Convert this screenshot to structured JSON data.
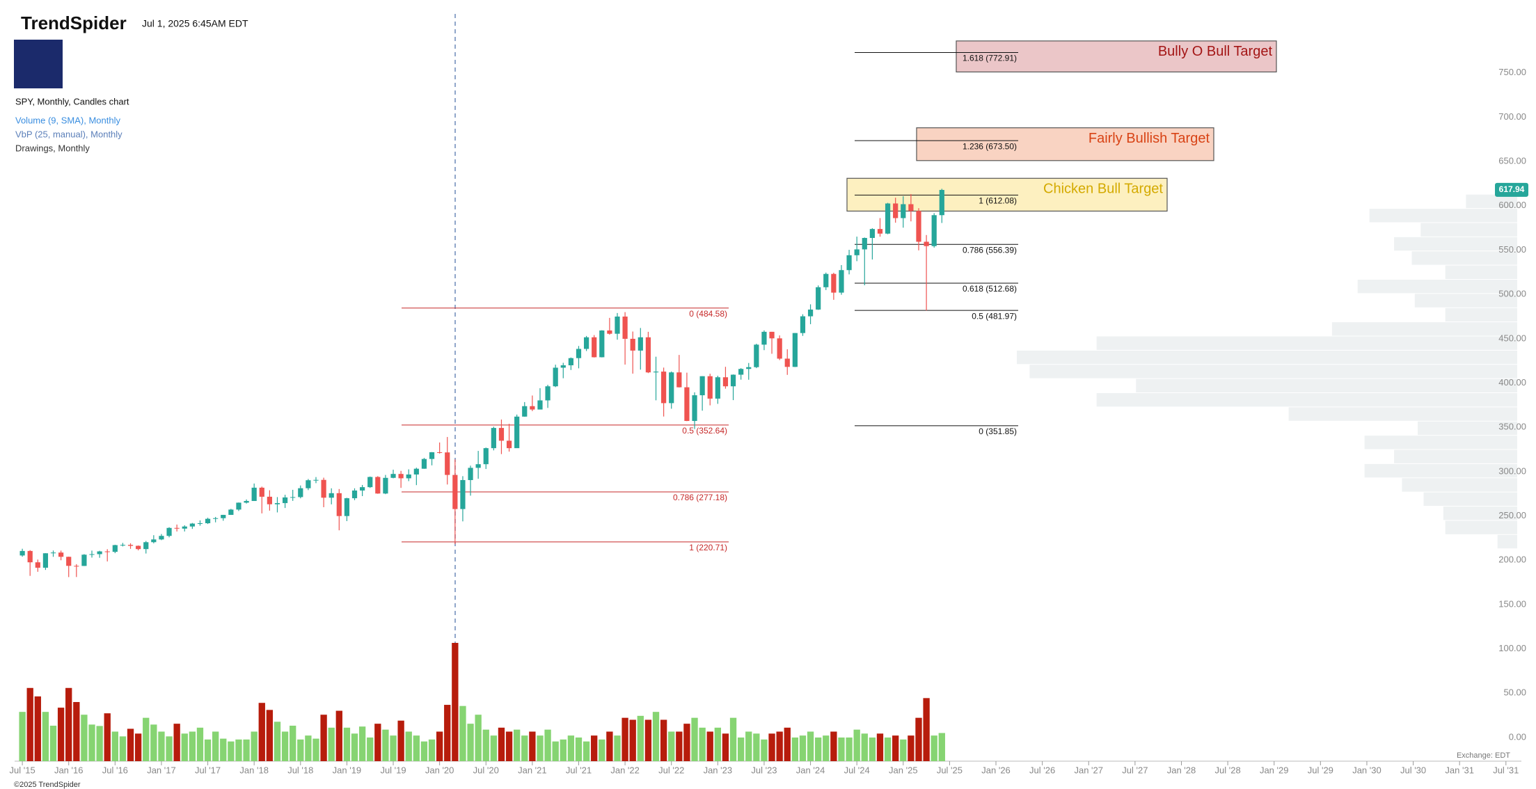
{
  "header": {
    "brand": "TrendSpider",
    "timestamp": "Jul 1, 2025 6:45AM EDT",
    "legend": [
      "SPY, Monthly, Candles chart",
      "Volume (9, SMA), Monthly",
      "VbP (25, manual), Monthly",
      "Drawings, Monthly"
    ]
  },
  "chart_data": {
    "type": "candlestick",
    "x": [
      "2015-07",
      "2015-08",
      "2015-09",
      "2015-10",
      "2015-11",
      "2015-12",
      "2016-01",
      "2016-02",
      "2016-03",
      "2016-04",
      "2016-05",
      "2016-06",
      "2016-07",
      "2016-08",
      "2016-09",
      "2016-10",
      "2016-11",
      "2016-12",
      "2017-01",
      "2017-02",
      "2017-03",
      "2017-04",
      "2017-05",
      "2017-06",
      "2017-07",
      "2017-08",
      "2017-09",
      "2017-10",
      "2017-11",
      "2017-12",
      "2018-01",
      "2018-02",
      "2018-03",
      "2018-04",
      "2018-05",
      "2018-06",
      "2018-07",
      "2018-08",
      "2018-09",
      "2018-10",
      "2018-11",
      "2018-12",
      "2019-01",
      "2019-02",
      "2019-03",
      "2019-04",
      "2019-05",
      "2019-06",
      "2019-07",
      "2019-08",
      "2019-09",
      "2019-10",
      "2019-11",
      "2019-12",
      "2020-01",
      "2020-02",
      "2020-03",
      "2020-04",
      "2020-05",
      "2020-06",
      "2020-07",
      "2020-08",
      "2020-09",
      "2020-10",
      "2020-11",
      "2020-12",
      "2021-01",
      "2021-02",
      "2021-03",
      "2021-04",
      "2021-05",
      "2021-06",
      "2021-07",
      "2021-08",
      "2021-09",
      "2021-10",
      "2021-11",
      "2021-12",
      "2022-01",
      "2022-02",
      "2022-03",
      "2022-04",
      "2022-05",
      "2022-06",
      "2022-07",
      "2022-08",
      "2022-09",
      "2022-10",
      "2022-11",
      "2022-12",
      "2023-01",
      "2023-02",
      "2023-03",
      "2023-04",
      "2023-05",
      "2023-06",
      "2023-07",
      "2023-08",
      "2023-09",
      "2023-10",
      "2023-11",
      "2023-12",
      "2024-01",
      "2024-02",
      "2024-03",
      "2024-04",
      "2024-05",
      "2024-06",
      "2024-07",
      "2024-08",
      "2024-09",
      "2024-10",
      "2024-11",
      "2024-12",
      "2025-01",
      "2025-02",
      "2025-03",
      "2025-04",
      "2025-05",
      "2025-06"
    ],
    "ohlc": [
      [
        205.4,
        213.0,
        204.0,
        210.5
      ],
      [
        210.5,
        211.4,
        182.4,
        197.7
      ],
      [
        197.7,
        200.8,
        187.0,
        191.6
      ],
      [
        191.6,
        208.0,
        189.1,
        207.9
      ],
      [
        207.9,
        211.0,
        203.9,
        208.7
      ],
      [
        208.7,
        210.9,
        200.0,
        203.9
      ],
      [
        203.9,
        204.1,
        181.0,
        193.7
      ],
      [
        193.7,
        195.6,
        181.1,
        193.6
      ],
      [
        193.6,
        206.9,
        193.5,
        206.3
      ],
      [
        206.3,
        210.9,
        203.0,
        206.9
      ],
      [
        206.9,
        210.7,
        202.8,
        210.0
      ],
      [
        210.0,
        212.5,
        198.7,
        209.5
      ],
      [
        209.5,
        217.5,
        208.0,
        217.1
      ],
      [
        217.1,
        219.6,
        215.6,
        217.4
      ],
      [
        217.4,
        219.2,
        212.9,
        216.3
      ],
      [
        216.3,
        216.7,
        211.2,
        212.6
      ],
      [
        212.6,
        221.8,
        207.6,
        220.4
      ],
      [
        220.4,
        228.3,
        219.1,
        223.5
      ],
      [
        223.5,
        229.6,
        222.7,
        227.5
      ],
      [
        227.5,
        237.3,
        225.9,
        236.5
      ],
      [
        236.5,
        240.3,
        232.5,
        235.7
      ],
      [
        235.7,
        239.5,
        232.5,
        238.1
      ],
      [
        238.1,
        242.1,
        235.4,
        241.4
      ],
      [
        241.4,
        245.0,
        239.0,
        241.8
      ],
      [
        241.8,
        248.0,
        240.9,
        246.8
      ],
      [
        246.8,
        248.9,
        242.8,
        247.5
      ],
      [
        247.5,
        251.3,
        244.6,
        251.2
      ],
      [
        251.2,
        258.0,
        251.2,
        257.2
      ],
      [
        257.2,
        265.2,
        255.6,
        265.0
      ],
      [
        265.0,
        268.6,
        264.0,
        266.9
      ],
      [
        266.9,
        286.6,
        267.4,
        281.9
      ],
      [
        281.9,
        283.1,
        252.9,
        271.7
      ],
      [
        271.7,
        279.0,
        256.0,
        263.2
      ],
      [
        263.2,
        271.3,
        254.0,
        264.5
      ],
      [
        264.5,
        273.9,
        259.0,
        270.9
      ],
      [
        270.9,
        279.5,
        267.0,
        271.3
      ],
      [
        271.3,
        284.4,
        269.9,
        281.3
      ],
      [
        281.3,
        291.7,
        279.2,
        290.3
      ],
      [
        290.3,
        293.9,
        287.0,
        290.7
      ],
      [
        290.7,
        293.2,
        259.9,
        270.6
      ],
      [
        270.6,
        281.2,
        263.1,
        275.7
      ],
      [
        275.7,
        280.4,
        233.8,
        249.9
      ],
      [
        249.9,
        270.5,
        244.2,
        270.0
      ],
      [
        270.0,
        281.2,
        267.8,
        278.7
      ],
      [
        278.7,
        285.0,
        272.4,
        282.5
      ],
      [
        282.5,
        294.5,
        281.6,
        294.0
      ],
      [
        294.0,
        294.9,
        275.0,
        275.3
      ],
      [
        275.3,
        296.3,
        274.6,
        293.0
      ],
      [
        293.0,
        302.2,
        292.5,
        297.4
      ],
      [
        297.4,
        300.9,
        281.7,
        292.5
      ],
      [
        292.5,
        302.6,
        289.3,
        296.8
      ],
      [
        296.8,
        304.5,
        284.8,
        303.3
      ],
      [
        303.3,
        315.5,
        303.2,
        314.3
      ],
      [
        314.3,
        322.1,
        307.1,
        321.9
      ],
      [
        321.9,
        332.9,
        320.4,
        321.7
      ],
      [
        321.7,
        339.1,
        285.5,
        296.3
      ],
      [
        296.3,
        313.8,
        218.3,
        257.8
      ],
      [
        257.8,
        294.9,
        243.9,
        290.5
      ],
      [
        290.5,
        306.8,
        272.9,
        304.3
      ],
      [
        304.3,
        323.4,
        292.0,
        308.4
      ],
      [
        308.4,
        327.2,
        303.0,
        326.5
      ],
      [
        326.5,
        350.7,
        324.0,
        349.3
      ],
      [
        349.3,
        358.8,
        319.8,
        334.9
      ],
      [
        334.9,
        354.0,
        322.6,
        326.5
      ],
      [
        326.5,
        364.4,
        327.2,
        362.1
      ],
      [
        362.1,
        378.5,
        362.0,
        373.9
      ],
      [
        373.9,
        385.9,
        368.3,
        370.1
      ],
      [
        370.1,
        394.2,
        370.4,
        380.4
      ],
      [
        380.4,
        398.0,
        371.9,
        396.3
      ],
      [
        396.3,
        420.7,
        395.4,
        417.3
      ],
      [
        417.3,
        422.8,
        405.4,
        420.0
      ],
      [
        420.0,
        428.8,
        414.7,
        428.1
      ],
      [
        428.1,
        441.8,
        416.6,
        438.5
      ],
      [
        438.5,
        453.1,
        436.1,
        451.6
      ],
      [
        451.6,
        454.1,
        428.8,
        429.1
      ],
      [
        429.1,
        459.6,
        428.9,
        459.3
      ],
      [
        459.3,
        473.5,
        454.6,
        455.6
      ],
      [
        455.6,
        479.0,
        448.9,
        475.0
      ],
      [
        475.0,
        479.98,
        420.8,
        449.9
      ],
      [
        449.9,
        458.1,
        410.6,
        436.6
      ],
      [
        436.6,
        462.1,
        415.1,
        451.6
      ],
      [
        451.6,
        457.8,
        411.2,
        412.0
      ],
      [
        412.0,
        429.7,
        380.5,
        412.9
      ],
      [
        412.9,
        417.4,
        362.2,
        377.3
      ],
      [
        377.3,
        413.0,
        371.0,
        412.0
      ],
      [
        412.0,
        431.7,
        395.0,
        395.2
      ],
      [
        395.2,
        411.7,
        357.0,
        357.2
      ],
      [
        357.2,
        389.5,
        348.1,
        386.2
      ],
      [
        386.2,
        407.7,
        368.8,
        407.7
      ],
      [
        407.7,
        410.5,
        374.8,
        382.4
      ],
      [
        382.4,
        408.2,
        376.5,
        406.5
      ],
      [
        406.5,
        418.3,
        393.6,
        396.3
      ],
      [
        396.3,
        409.7,
        380.7,
        409.4
      ],
      [
        409.4,
        416.8,
        403.8,
        415.9
      ],
      [
        415.9,
        422.6,
        403.7,
        417.9
      ],
      [
        417.9,
        444.3,
        416.8,
        443.3
      ],
      [
        443.3,
        459.4,
        437.1,
        457.8
      ],
      [
        457.8,
        457.8,
        433.0,
        450.4
      ],
      [
        450.4,
        453.7,
        425.9,
        427.5
      ],
      [
        427.5,
        438.1,
        409.2,
        418.2
      ],
      [
        418.2,
        456.4,
        418.0,
        456.4
      ],
      [
        456.4,
        477.6,
        453.2,
        475.3
      ],
      [
        475.3,
        488.8,
        466.4,
        482.9
      ],
      [
        482.9,
        510.1,
        482.5,
        508.1
      ],
      [
        508.1,
        524.6,
        504.9,
        523.1
      ],
      [
        523.1,
        524.4,
        493.9,
        502.0
      ],
      [
        502.0,
        533.1,
        499.6,
        527.4
      ],
      [
        527.4,
        550.3,
        522.6,
        544.2
      ],
      [
        544.2,
        565.2,
        537.5,
        550.8
      ],
      [
        550.8,
        564.2,
        510.3,
        563.7
      ],
      [
        563.7,
        574.7,
        539.4,
        573.8
      ],
      [
        573.8,
        586.1,
        565.1,
        568.6
      ],
      [
        568.6,
        603.3,
        567.9,
        602.6
      ],
      [
        602.6,
        609.1,
        580.9,
        586.1
      ],
      [
        586.1,
        610.8,
        575.3,
        601.8
      ],
      [
        601.8,
        613.2,
        582.4,
        594.2
      ],
      [
        594.2,
        597.3,
        549.7,
        559.4
      ],
      [
        559.4,
        567.0,
        481.8,
        554.5
      ],
      [
        554.5,
        591.7,
        552.8,
        589.4
      ],
      [
        589.4,
        619.2,
        580.6,
        617.9
      ]
    ],
    "volume": [
      1750,
      2600,
      2300,
      1750,
      1260,
      1900,
      2600,
      2100,
      1650,
      1300,
      1250,
      1700,
      1050,
      880,
      1150,
      980,
      1540,
      1300,
      1050,
      880,
      1330,
      980,
      1050,
      1190,
      770,
      1050,
      800,
      700,
      770,
      770,
      1050,
      2070,
      1820,
      1400,
      1050,
      1260,
      770,
      910,
      800,
      1650,
      1190,
      1790,
      1190,
      980,
      1230,
      840,
      1330,
      1120,
      910,
      1440,
      1050,
      910,
      700,
      770,
      1050,
      2000,
      4200,
      1960,
      1330,
      1650,
      1120,
      910,
      1190,
      1050,
      1120,
      910,
      1050,
      910,
      1120,
      700,
      770,
      910,
      840,
      700,
      910,
      770,
      1050,
      910,
      1540,
      1470,
      1610,
      1470,
      1750,
      1470,
      1050,
      1050,
      1330,
      1540,
      1190,
      1050,
      1190,
      980,
      1540,
      840,
      1050,
      980,
      770,
      980,
      1050,
      1190,
      840,
      910,
      1050,
      840,
      910,
      1050,
      840,
      840,
      1120,
      980,
      840,
      980,
      840,
      910,
      770,
      910,
      1540,
      2240,
      910,
      1000
    ],
    "up_color": "#26a69a",
    "down_color": "#ef5350",
    "volume_up_color": "#86d472",
    "volume_down_color": "#b71c0c",
    "ylim": [
      -26.7,
      832.2
    ],
    "yticks": [
      {
        "value": 0,
        "label": "0.00"
      },
      {
        "value": 50,
        "label": "50.00"
      },
      {
        "value": 100,
        "label": "100.00"
      },
      {
        "value": 150,
        "label": "150.00"
      },
      {
        "value": 200,
        "label": "200.00"
      },
      {
        "value": 250,
        "label": "250.00"
      },
      {
        "value": 300,
        "label": "300.00"
      },
      {
        "value": 350,
        "label": "350.00"
      },
      {
        "value": 400,
        "label": "400.00"
      },
      {
        "value": 450,
        "label": "450.00"
      },
      {
        "value": 500,
        "label": "500.00"
      },
      {
        "value": 550,
        "label": "550.00"
      },
      {
        "value": 600,
        "label": "600.00"
      },
      {
        "value": 650,
        "label": "650.00"
      },
      {
        "value": 700,
        "label": "700.00"
      },
      {
        "value": 750,
        "label": "750.00"
      }
    ],
    "xlim": [
      "2015-06",
      "2031-09"
    ],
    "xticks": [
      {
        "value": "2015-07",
        "label": "Jul '15"
      },
      {
        "value": "2016-01",
        "label": "Jan '16"
      },
      {
        "value": "2016-07",
        "label": "Jul '16"
      },
      {
        "value": "2017-01",
        "label": "Jan '17"
      },
      {
        "value": "2017-07",
        "label": "Jul '17"
      },
      {
        "value": "2018-01",
        "label": "Jan '18"
      },
      {
        "value": "2018-07",
        "label": "Jul '18"
      },
      {
        "value": "2019-01",
        "label": "Jan '19"
      },
      {
        "value": "2019-07",
        "label": "Jul '19"
      },
      {
        "value": "2020-01",
        "label": "Jan '20"
      },
      {
        "value": "2020-07",
        "label": "Jul '20"
      },
      {
        "value": "2021-01",
        "label": "Jan '21"
      },
      {
        "value": "2021-07",
        "label": "Jul '21"
      },
      {
        "value": "2022-01",
        "label": "Jan '22"
      },
      {
        "value": "2022-07",
        "label": "Jul '22"
      },
      {
        "value": "2023-01",
        "label": "Jan '23"
      },
      {
        "value": "2023-07",
        "label": "Jul '23"
      },
      {
        "value": "2024-01",
        "label": "Jan '24"
      },
      {
        "value": "2024-07",
        "label": "Jul '24"
      },
      {
        "value": "2025-01",
        "label": "Jan '25"
      },
      {
        "value": "2025-07",
        "label": "Jul '25"
      },
      {
        "value": "2026-01",
        "label": "Jan '26"
      },
      {
        "value": "2026-07",
        "label": "Jul '26"
      },
      {
        "value": "2027-01",
        "label": "Jan '27"
      },
      {
        "value": "2027-07",
        "label": "Jul '27"
      },
      {
        "value": "2028-01",
        "label": "Jan '28"
      },
      {
        "value": "2028-07",
        "label": "Jul '28"
      },
      {
        "value": "2029-01",
        "label": "Jan '29"
      },
      {
        "value": "2029-07",
        "label": "Jul '29"
      },
      {
        "value": "2030-01",
        "label": "Jan '30"
      },
      {
        "value": "2030-07",
        "label": "Jul '30"
      },
      {
        "value": "2031-01",
        "label": "Jan '31"
      },
      {
        "value": "2031-07",
        "label": "Jul '31"
      }
    ],
    "last_price": {
      "value": 617.94,
      "label": "617.94",
      "color": "#26a69a"
    },
    "vbp": {
      "color": "#eef1f2",
      "bins": [
        213,
        229,
        245,
        261,
        277,
        293,
        309,
        325,
        341,
        357,
        373,
        389,
        405,
        421,
        437,
        453,
        469,
        485,
        501,
        517,
        533,
        549,
        565,
        581,
        597,
        613
      ],
      "volumes": [
        20,
        73,
        75,
        95,
        117,
        155,
        125,
        155,
        101,
        232,
        427,
        387,
        495,
        508,
        427,
        188,
        73,
        104,
        162,
        73,
        107,
        125,
        98,
        150,
        52
      ]
    },
    "fib_left": {
      "color": "#c62828",
      "levels": [
        {
          "price": 484.58,
          "label": "0 (484.58)"
        },
        {
          "price": 352.64,
          "label": "0.5 (352.64)"
        },
        {
          "price": 277.18,
          "label": "0.786 (277.18)"
        },
        {
          "price": 220.71,
          "label": "1 (220.71)"
        }
      ]
    },
    "fib_right": {
      "color": "#111111",
      "levels": [
        {
          "price": 772.91,
          "label": "1.618 (772.91)"
        },
        {
          "price": 673.5,
          "label": "1.236 (673.50)"
        },
        {
          "price": 612.08,
          "label": "1 (612.08)"
        },
        {
          "price": 556.39,
          "label": "0.786 (556.39)"
        },
        {
          "price": 512.68,
          "label": "0.618 (512.68)"
        },
        {
          "price": 481.97,
          "label": "0.5 (481.97)"
        },
        {
          "price": 351.85,
          "label": "0 (351.85)"
        }
      ]
    },
    "targets": [
      {
        "label": "Bully O Bull Target",
        "low": 751,
        "high": 786,
        "fill": "#ebc6c8",
        "color": "#a31515"
      },
      {
        "label": "Fairly Bullish Target",
        "low": 651,
        "high": 688,
        "fill": "#f9d3c2",
        "color": "#d84315"
      },
      {
        "label": "Chicken Bull Target",
        "low": 594,
        "high": 631,
        "fill": "#fdf0c0",
        "color": "#d4aa00"
      }
    ]
  },
  "footer": {
    "exchange": "Exchange: EDT",
    "copyright": "©2025 TrendSpider"
  }
}
